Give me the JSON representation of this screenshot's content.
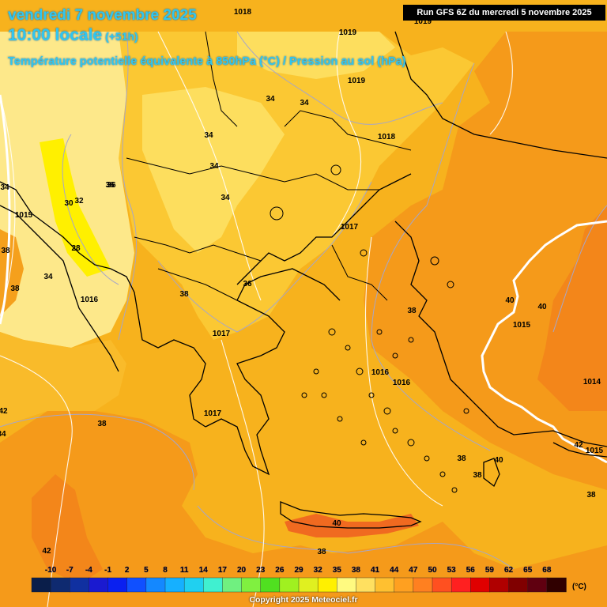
{
  "header": {
    "date_line": "vendredi 7 novembre 2025",
    "time_line": "10:00 locale",
    "offset": "(+51h)",
    "field_title": "Température potentielle équivalente à 850hPa (°C) / Pression au sol (hPa)"
  },
  "run_info": "Run GFS 6Z du mercredi 5 novembre 2025",
  "copyright": "Copyright 2025 Meteociel.fr",
  "legend": {
    "unit": "(°C)",
    "ticks": [
      "-10",
      "-7",
      "-4",
      "-1",
      "2",
      "5",
      "8",
      "11",
      "14",
      "17",
      "20",
      "23",
      "26",
      "29",
      "32",
      "35",
      "38",
      "41",
      "44",
      "47",
      "50",
      "53",
      "56",
      "59",
      "62",
      "65",
      "68"
    ],
    "colors": [
      "#0a1e4a",
      "#0f2a70",
      "#1030a0",
      "#1a1ad0",
      "#0a20f0",
      "#1050ff",
      "#1488ff",
      "#16b0ff",
      "#20d0f0",
      "#40f0d0",
      "#70f080",
      "#80f040",
      "#50e020",
      "#a0f020",
      "#e0f020",
      "#fff000",
      "#fffa80",
      "#ffe060",
      "#ffc030",
      "#ffa020",
      "#ff8020",
      "#ff5020",
      "#ff2020",
      "#e00000",
      "#b00000",
      "#800000",
      "#600010",
      "#300000"
    ]
  },
  "isotherm_labels": [
    "34",
    "34",
    "34",
    "34",
    "36",
    "32",
    "30",
    "28",
    "34",
    "34",
    "38",
    "38",
    "36",
    "38",
    "38",
    "40",
    "40",
    "38",
    "38",
    "40",
    "42",
    "38",
    "40",
    "38",
    "42",
    "38",
    "42",
    "34",
    "36",
    "34"
  ],
  "isobar_labels": [
    "1018",
    "1019",
    "1019",
    "1019",
    "1018",
    "1017",
    "1015",
    "1016",
    "1017",
    "1017",
    "1016",
    "1016",
    "1015",
    "1014",
    "1015"
  ]
}
